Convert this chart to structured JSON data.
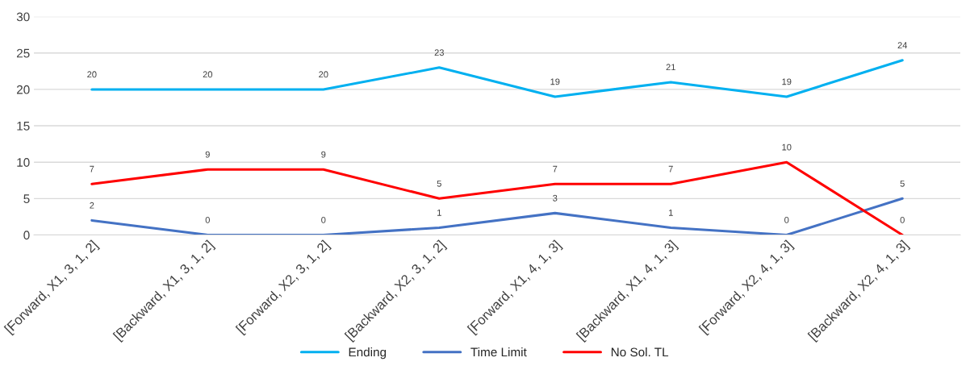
{
  "chart_data": {
    "type": "line",
    "categories": [
      "[Forward, X1, 3, 1, 2]",
      "[Backward, X1, 3, 1, 2]",
      "[Forward, X2, 3, 1, 2]",
      "[Backward, X2, 3, 1, 2]",
      "[Forward, X1, 4, 1, 3]",
      "[Backward, X1, 4, 1, 3]",
      "[Forward, X2, 4, 1, 3]",
      "[Backward, X2, 4, 1, 3]"
    ],
    "series": [
      {
        "name": "Ending",
        "color": "#00b0f0",
        "values": [
          20,
          20,
          20,
          23,
          19,
          21,
          19,
          24
        ]
      },
      {
        "name": "Time Limit",
        "color": "#4472c4",
        "values": [
          2,
          0,
          0,
          1,
          3,
          1,
          0,
          5
        ]
      },
      {
        "name": "No Sol. TL",
        "color": "#ff0000",
        "values": [
          7,
          9,
          9,
          5,
          7,
          7,
          10,
          0
        ]
      }
    ],
    "ylim": [
      0,
      30
    ],
    "yticks": [
      0,
      5,
      10,
      15,
      20,
      25,
      30
    ],
    "grid": "y",
    "legend": "bottom",
    "data_labels": true,
    "marker": "none",
    "line_style": "solid"
  }
}
